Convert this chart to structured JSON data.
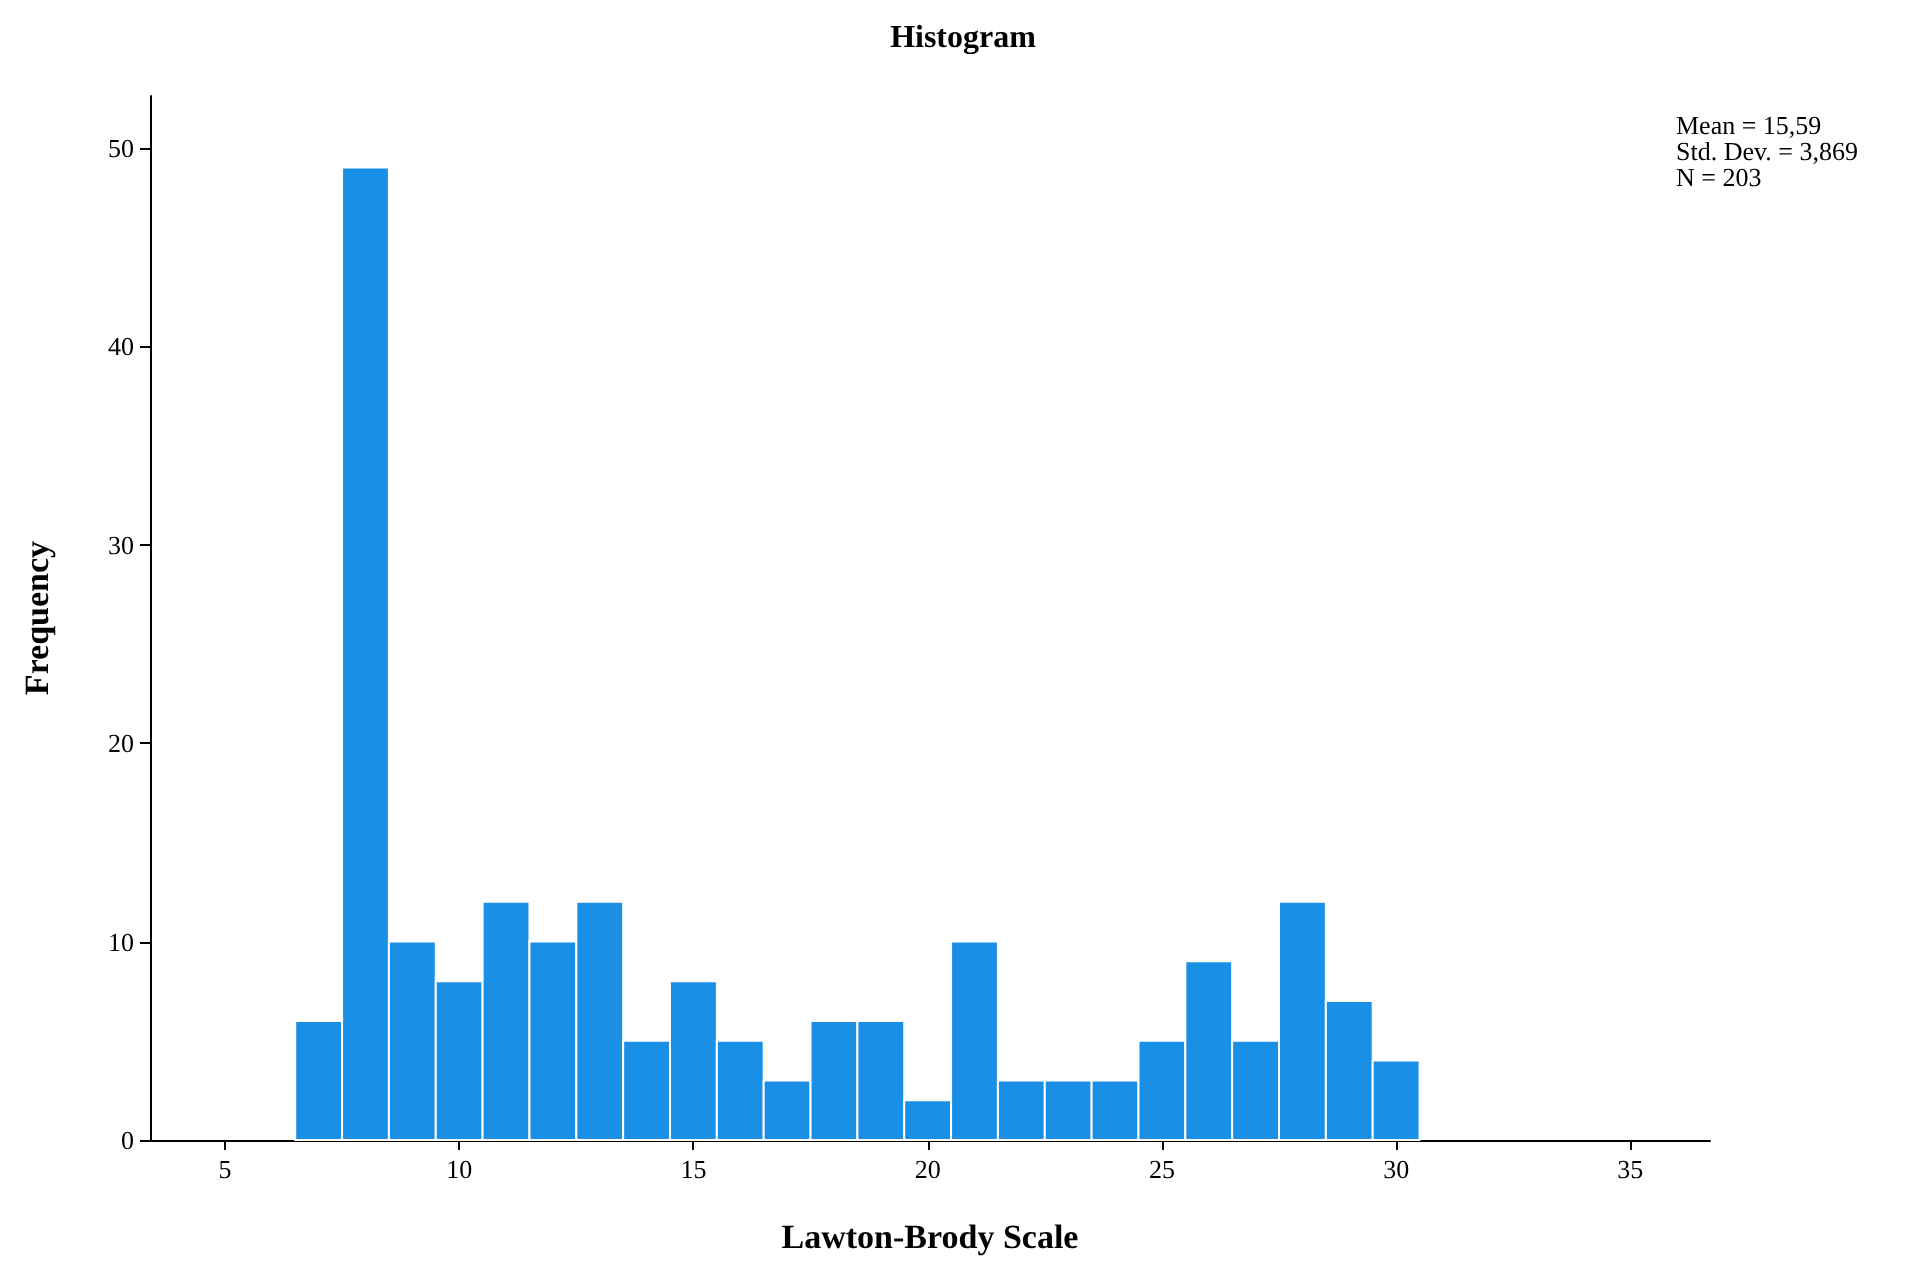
{
  "chart_data": {
    "type": "histogram",
    "title": "Histogram",
    "xlabel": "Lawton-Brody Scale",
    "ylabel": "Frequency",
    "bins": [
      6.5,
      7.5,
      8.5,
      9.5,
      10.5,
      11.5,
      12.5,
      13.5,
      14.5,
      15.5,
      16.5,
      17.5,
      18.5,
      19.5,
      20.5,
      21.5,
      22.5,
      23.5,
      24.5,
      25.5,
      26.5,
      27.5,
      28.5,
      29.5,
      30.5
    ],
    "values": [
      6,
      49,
      10,
      8,
      12,
      10,
      12,
      5,
      8,
      5,
      3,
      6,
      6,
      2,
      10,
      3,
      3,
      3,
      5,
      9,
      5,
      12,
      7,
      4
    ],
    "color": "#1a8fe6",
    "xlim": [
      3.4,
      36.7
    ],
    "xticks": [
      5,
      10,
      15,
      20,
      25,
      30,
      35
    ],
    "ylim": [
      0,
      52.6
    ],
    "yticks": [
      0,
      10,
      20,
      30,
      40,
      50
    ],
    "annotations": [
      "Mean = 15,59",
      "Std. Dev. = 3,869",
      "N = 203"
    ]
  }
}
